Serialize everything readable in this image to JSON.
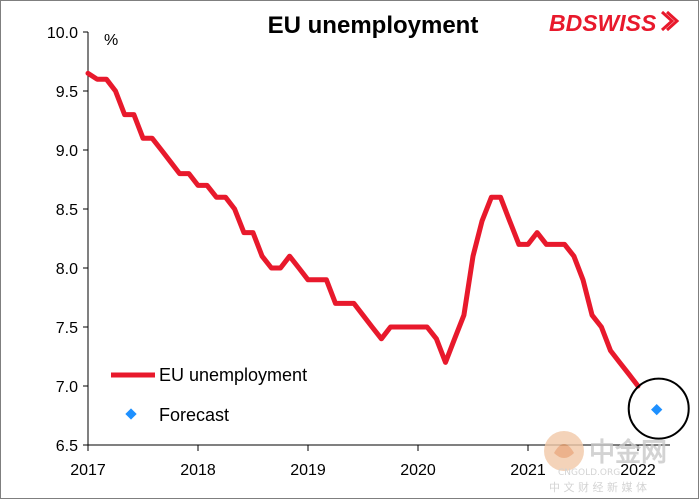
{
  "brand": {
    "name": "BDSWISS",
    "color": "#e8192c"
  },
  "watermark": {
    "name": "中金网",
    "subtitle": "中 文 财 经 新 媒 体",
    "domain": "CNGOLD.ORG"
  },
  "colors": {
    "series": "#e8192c",
    "forecast": "#1e90ff",
    "highlight_circle": "#000000"
  },
  "chart_data": {
    "type": "line",
    "title": "EU unemployment",
    "ylabel": "%",
    "xlabel": "",
    "ylim": [
      6.5,
      10.0
    ],
    "xlim": [
      2017.0,
      2022.0
    ],
    "y_ticks": [
      "10.0",
      "9.5",
      "9.0",
      "8.5",
      "8.0",
      "7.5",
      "7.0",
      "6.5"
    ],
    "x_ticks": [
      "2017",
      "2018",
      "2019",
      "2020",
      "2021",
      "2022"
    ],
    "grid": false,
    "legend_position": "bottom-left",
    "series": [
      {
        "name": "EU unemployment",
        "x": [
          2017.0,
          2017.083,
          2017.167,
          2017.25,
          2017.333,
          2017.417,
          2017.5,
          2017.583,
          2017.667,
          2017.75,
          2017.833,
          2017.917,
          2018.0,
          2018.083,
          2018.167,
          2018.25,
          2018.333,
          2018.417,
          2018.5,
          2018.583,
          2018.667,
          2018.75,
          2018.833,
          2018.917,
          2019.0,
          2019.083,
          2019.167,
          2019.25,
          2019.333,
          2019.417,
          2019.5,
          2019.583,
          2019.667,
          2019.75,
          2019.833,
          2019.917,
          2020.0,
          2020.083,
          2020.167,
          2020.25,
          2020.333,
          2020.417,
          2020.5,
          2020.583,
          2020.667,
          2020.75,
          2020.833,
          2020.917,
          2021.0,
          2021.083,
          2021.167,
          2021.25,
          2021.333,
          2021.417,
          2021.5,
          2021.583,
          2021.667,
          2021.75,
          2021.833,
          2021.917,
          2022.0
        ],
        "y": [
          9.65,
          9.6,
          9.6,
          9.5,
          9.3,
          9.3,
          9.1,
          9.1,
          9.0,
          8.9,
          8.8,
          8.8,
          8.7,
          8.7,
          8.6,
          8.6,
          8.5,
          8.3,
          8.3,
          8.1,
          8.0,
          8.0,
          8.1,
          8.0,
          7.9,
          7.9,
          7.9,
          7.7,
          7.7,
          7.7,
          7.6,
          7.5,
          7.4,
          7.5,
          7.5,
          7.5,
          7.5,
          7.5,
          7.4,
          7.2,
          7.4,
          7.6,
          8.1,
          8.4,
          8.6,
          8.6,
          8.4,
          8.2,
          8.2,
          8.3,
          8.2,
          8.2,
          8.2,
          8.1,
          7.9,
          7.6,
          7.5,
          7.3,
          7.2,
          7.1,
          7.0
        ]
      },
      {
        "name": "Forecast",
        "x": [
          2022.17
        ],
        "y": [
          6.8
        ]
      }
    ]
  }
}
